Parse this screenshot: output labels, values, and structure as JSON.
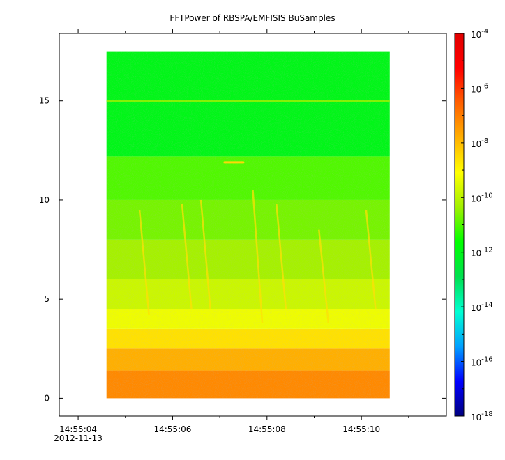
{
  "chart_data": {
    "type": "heatmap",
    "title": "FFTPower of RBSPA/EMFISIS  BuSamples",
    "xlabel": "",
    "ylabel": "",
    "x_date_label": "2012-11-13",
    "x_ticks": [
      {
        "value": 4,
        "label": "14:55:04",
        "major": true
      },
      {
        "value": 5,
        "label": "",
        "major": false
      },
      {
        "value": 6,
        "label": "14:55:06",
        "major": true
      },
      {
        "value": 7,
        "label": "",
        "major": false
      },
      {
        "value": 8,
        "label": "14:55:08",
        "major": true
      },
      {
        "value": 9,
        "label": "",
        "major": false
      },
      {
        "value": 10,
        "label": "14:55:10",
        "major": true
      },
      {
        "value": 11,
        "label": "",
        "major": false
      }
    ],
    "y_ticks": [
      {
        "value": 0,
        "label": "0"
      },
      {
        "value": 5,
        "label": "5"
      },
      {
        "value": 10,
        "label": "10"
      },
      {
        "value": 15,
        "label": "15"
      }
    ],
    "x_range": [
      "14:55:03.6",
      "14:55:11.8"
    ],
    "ylim": [
      -0.9,
      18.4
    ],
    "data_extent": {
      "x": [
        "14:55:04.6",
        "14:55:10.6"
      ],
      "y": [
        0,
        17.5
      ]
    },
    "colorbar": {
      "scale": "log",
      "range": [
        1e-18,
        0.0001
      ],
      "ticks": [
        {
          "exp": -4,
          "base": "10",
          "power": "-4"
        },
        {
          "exp": -6,
          "base": "10",
          "power": "-6"
        },
        {
          "exp": -8,
          "base": "10",
          "power": "-8"
        },
        {
          "exp": -10,
          "base": "10",
          "power": "-10"
        },
        {
          "exp": -12,
          "base": "10",
          "power": "-12"
        },
        {
          "exp": -14,
          "base": "10",
          "power": "-14"
        },
        {
          "exp": -16,
          "base": "10",
          "power": "-16"
        },
        {
          "exp": -18,
          "base": "10",
          "power": "-18"
        }
      ],
      "colors": [
        "#00007f",
        "#0000ff",
        "#00a0ff",
        "#00ffd2",
        "#00e050",
        "#00ff00",
        "#a0f000",
        "#ffff00",
        "#ffb000",
        "#ff6000",
        "#ff0000",
        "#e00000"
      ]
    },
    "bands": [
      {
        "y": [
          0,
          1.4
        ],
        "log_power": -7.2
      },
      {
        "y": [
          1.4,
          2.5
        ],
        "log_power": -7.8
      },
      {
        "y": [
          2.5,
          3.5
        ],
        "log_power": -8.6
      },
      {
        "y": [
          3.5,
          4.5
        ],
        "log_power": -9.3
      },
      {
        "y": [
          4.5,
          6
        ],
        "log_power": -9.8
      },
      {
        "y": [
          6,
          8
        ],
        "log_power": -10.3
      },
      {
        "y": [
          8,
          10
        ],
        "log_power": -10.7
      },
      {
        "y": [
          10,
          12.2
        ],
        "log_power": -11.0
      },
      {
        "y": [
          12.2,
          17.5
        ],
        "log_power": -12.0
      }
    ],
    "features": {
      "line_15": {
        "y": 15.0,
        "log_power": -10.6
      },
      "blip": {
        "y": 11.9,
        "x": [
          "14:55:07.1",
          "14:55:07.5"
        ],
        "log_power": -8.5
      },
      "streaks": [
        {
          "x_top": "14:55:05.3",
          "x_bottom": "14:55:05.5",
          "y": [
            4.2,
            9.5
          ]
        },
        {
          "x_top": "14:55:06.2",
          "x_bottom": "14:55:06.4",
          "y": [
            4.5,
            9.8
          ]
        },
        {
          "x_top": "14:55:06.6",
          "x_bottom": "14:55:06.8",
          "y": [
            4.5,
            10
          ]
        },
        {
          "x_top": "14:55:07.7",
          "x_bottom": "14:55:07.9",
          "y": [
            3.8,
            10.5
          ]
        },
        {
          "x_top": "14:55:08.2",
          "x_bottom": "14:55:08.4",
          "y": [
            4.5,
            9.8
          ]
        },
        {
          "x_top": "14:55:09.1",
          "x_bottom": "14:55:09.3",
          "y": [
            3.8,
            8.5
          ]
        },
        {
          "x_top": "14:55:10.1",
          "x_bottom": "14:55:10.3",
          "y": [
            4.5,
            9.5
          ]
        }
      ]
    }
  }
}
